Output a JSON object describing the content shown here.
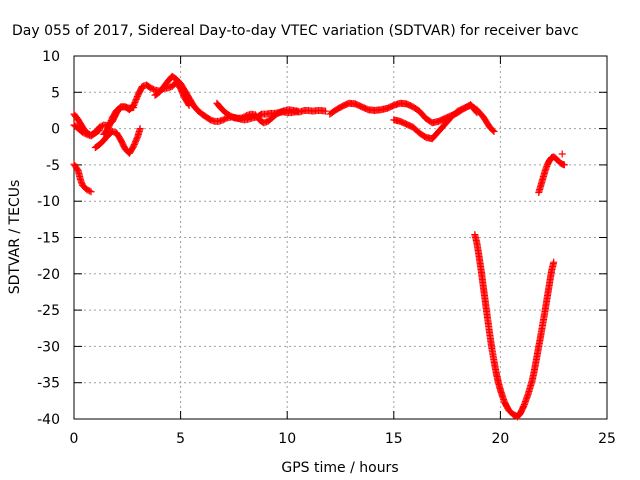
{
  "chart_data": {
    "type": "scatter",
    "title": "Day 055 of 2017, Sidereal Day-to-day VTEC variation (SDTVAR) for receiver bavc",
    "xlabel": "GPS time / hours",
    "ylabel": "SDTVAR / TECUs",
    "xlim": [
      0,
      25
    ],
    "ylim": [
      -40,
      10
    ],
    "xticks": [
      0,
      5,
      10,
      15,
      20,
      25
    ],
    "yticks": [
      -40,
      -35,
      -30,
      -25,
      -20,
      -15,
      -10,
      -5,
      0,
      5,
      10
    ],
    "grid": true,
    "marker": "+",
    "color": "#ff0000",
    "series": [
      {
        "points": [
          [
            0.0,
            2.0
          ],
          [
            0.2,
            1.2
          ],
          [
            0.4,
            0.2
          ],
          [
            0.6,
            -0.6
          ],
          [
            0.8,
            -0.9
          ],
          [
            1.0,
            -0.5
          ],
          [
            1.2,
            0.2
          ],
          [
            1.4,
            0.5
          ],
          [
            1.6,
            0.4
          ],
          [
            1.8,
            1.0
          ],
          [
            2.0,
            2.2
          ],
          [
            2.2,
            3.0
          ],
          [
            2.4,
            3.0
          ],
          [
            2.6,
            2.8
          ],
          [
            2.8,
            2.9
          ]
        ]
      },
      {
        "points": [
          [
            0.0,
            0.5
          ],
          [
            0.2,
            0.0
          ],
          [
            0.4,
            -0.5
          ],
          [
            0.6,
            -0.8
          ],
          [
            0.8,
            -1.0
          ],
          [
            1.0,
            -0.6
          ],
          [
            1.2,
            -0.2
          ]
        ]
      },
      {
        "points": [
          [
            1.0,
            -2.6
          ],
          [
            1.2,
            -2.2
          ],
          [
            1.4,
            -1.6
          ],
          [
            1.6,
            -0.9
          ],
          [
            1.8,
            -0.4
          ],
          [
            2.0,
            -0.6
          ],
          [
            2.2,
            -1.6
          ],
          [
            2.4,
            -2.8
          ],
          [
            2.6,
            -3.4
          ],
          [
            2.8,
            -2.4
          ],
          [
            3.0,
            -1.0
          ],
          [
            3.1,
            0.0
          ]
        ]
      },
      {
        "points": [
          [
            0.0,
            -4.9
          ],
          [
            0.2,
            -5.8
          ],
          [
            0.3,
            -7.0
          ],
          [
            0.4,
            -7.8
          ],
          [
            0.6,
            -8.4
          ],
          [
            0.8,
            -8.7
          ]
        ]
      },
      {
        "points": [
          [
            1.4,
            -0.8
          ],
          [
            1.6,
            0.0
          ],
          [
            1.8,
            1.5
          ],
          [
            2.0,
            2.5
          ],
          [
            2.2,
            3.0
          ],
          [
            2.4,
            3.0
          ],
          [
            2.6,
            2.6
          ],
          [
            2.8,
            3.2
          ],
          [
            3.0,
            4.6
          ],
          [
            3.2,
            5.8
          ],
          [
            3.4,
            6.0
          ],
          [
            3.6,
            5.6
          ],
          [
            3.8,
            5.3
          ],
          [
            4.0,
            5.2
          ],
          [
            4.2,
            5.5
          ],
          [
            4.4,
            5.6
          ],
          [
            4.6,
            5.8
          ],
          [
            4.8,
            6.4
          ],
          [
            5.0,
            5.5
          ],
          [
            5.2,
            4.2
          ],
          [
            5.4,
            3.2
          ]
        ]
      },
      {
        "points": [
          [
            3.8,
            4.6
          ],
          [
            4.0,
            5.0
          ],
          [
            4.2,
            5.7
          ],
          [
            4.4,
            6.5
          ],
          [
            4.6,
            7.2
          ],
          [
            4.8,
            6.8
          ],
          [
            5.0,
            6.2
          ],
          [
            5.2,
            5.2
          ],
          [
            5.4,
            4.2
          ],
          [
            5.6,
            3.2
          ],
          [
            5.8,
            2.5
          ],
          [
            6.0,
            2.0
          ],
          [
            6.2,
            1.6
          ],
          [
            6.4,
            1.2
          ],
          [
            6.6,
            1.0
          ],
          [
            6.8,
            1.0
          ],
          [
            7.0,
            1.2
          ],
          [
            7.2,
            1.5
          ],
          [
            7.4,
            1.6
          ],
          [
            7.6,
            1.5
          ],
          [
            7.8,
            1.3
          ],
          [
            8.0,
            1.2
          ],
          [
            8.2,
            1.3
          ],
          [
            8.4,
            1.5
          ],
          [
            8.6,
            1.6
          ],
          [
            8.8,
            2.0
          ],
          [
            9.0,
            2.0
          ],
          [
            9.2,
            2.1
          ],
          [
            9.4,
            2.1
          ],
          [
            9.6,
            2.2
          ],
          [
            9.8,
            2.3
          ],
          [
            10.0,
            2.2
          ],
          [
            10.2,
            2.2
          ],
          [
            10.4,
            2.3
          ],
          [
            10.6,
            2.3
          ],
          [
            10.8,
            2.5
          ],
          [
            11.0,
            2.5
          ],
          [
            11.2,
            2.4
          ],
          [
            11.4,
            2.5
          ],
          [
            11.6,
            2.5
          ],
          [
            11.8,
            2.4
          ]
        ]
      },
      {
        "points": [
          [
            6.7,
            3.5
          ],
          [
            6.9,
            2.8
          ],
          [
            7.1,
            2.2
          ],
          [
            7.3,
            1.8
          ],
          [
            7.5,
            1.5
          ],
          [
            7.7,
            1.4
          ],
          [
            7.9,
            1.5
          ],
          [
            8.1,
            1.8
          ],
          [
            8.3,
            2.0
          ],
          [
            8.5,
            1.9
          ],
          [
            8.7,
            1.2
          ],
          [
            8.9,
            0.8
          ],
          [
            9.1,
            1.0
          ],
          [
            9.3,
            1.5
          ],
          [
            9.5,
            2.0
          ],
          [
            9.7,
            2.3
          ],
          [
            9.9,
            2.5
          ],
          [
            10.1,
            2.6
          ],
          [
            10.3,
            2.5
          ],
          [
            10.5,
            2.4
          ]
        ]
      },
      {
        "points": [
          [
            12.0,
            2.0
          ],
          [
            12.3,
            2.6
          ],
          [
            12.6,
            3.1
          ],
          [
            12.9,
            3.5
          ],
          [
            13.2,
            3.4
          ],
          [
            13.5,
            3.0
          ],
          [
            13.8,
            2.6
          ],
          [
            14.1,
            2.5
          ],
          [
            14.4,
            2.6
          ],
          [
            14.7,
            2.8
          ],
          [
            15.0,
            3.2
          ],
          [
            15.3,
            3.5
          ],
          [
            15.6,
            3.4
          ],
          [
            15.9,
            3.0
          ],
          [
            16.2,
            2.4
          ],
          [
            16.5,
            1.4
          ],
          [
            16.8,
            0.8
          ],
          [
            17.1,
            1.0
          ],
          [
            17.4,
            1.4
          ],
          [
            17.7,
            1.8
          ],
          [
            18.0,
            2.2
          ],
          [
            18.3,
            2.8
          ],
          [
            18.6,
            3.2
          ],
          [
            18.9,
            2.6
          ],
          [
            19.2,
            1.6
          ],
          [
            19.5,
            0.2
          ],
          [
            19.7,
            -0.4
          ]
        ]
      },
      {
        "points": [
          [
            15.0,
            1.2
          ],
          [
            15.3,
            1.0
          ],
          [
            15.6,
            0.6
          ],
          [
            15.9,
            0.2
          ],
          [
            16.2,
            -0.6
          ],
          [
            16.5,
            -1.2
          ],
          [
            16.8,
            -1.4
          ],
          [
            17.1,
            -0.4
          ],
          [
            17.4,
            0.6
          ],
          [
            17.7,
            1.6
          ],
          [
            18.0,
            2.4
          ],
          [
            18.3,
            2.8
          ],
          [
            18.6,
            3.3
          ],
          [
            18.9,
            2.2
          ]
        ]
      },
      {
        "points": [
          [
            18.8,
            -14.6
          ],
          [
            18.9,
            -15.8
          ],
          [
            19.0,
            -17.6
          ],
          [
            19.1,
            -19.6
          ],
          [
            19.2,
            -21.8
          ],
          [
            19.3,
            -24.0
          ],
          [
            19.4,
            -26.2
          ],
          [
            19.5,
            -28.3
          ],
          [
            19.6,
            -30.3
          ],
          [
            19.7,
            -32.0
          ],
          [
            19.8,
            -33.6
          ],
          [
            19.9,
            -34.9
          ],
          [
            20.0,
            -36.0
          ],
          [
            20.1,
            -36.9
          ],
          [
            20.2,
            -37.7
          ],
          [
            20.3,
            -38.3
          ],
          [
            20.4,
            -38.8
          ],
          [
            20.5,
            -39.1
          ],
          [
            20.6,
            -39.4
          ],
          [
            20.7,
            -39.5
          ],
          [
            20.8,
            -39.7
          ],
          [
            20.9,
            -39.4
          ],
          [
            21.0,
            -38.8
          ],
          [
            21.1,
            -38.2
          ],
          [
            21.2,
            -37.4
          ],
          [
            21.3,
            -36.6
          ],
          [
            21.4,
            -35.6
          ],
          [
            21.5,
            -34.6
          ],
          [
            21.6,
            -33.2
          ],
          [
            21.7,
            -31.6
          ],
          [
            21.8,
            -30.0
          ],
          [
            21.9,
            -28.4
          ],
          [
            22.0,
            -26.7
          ],
          [
            22.1,
            -25.0
          ],
          [
            22.2,
            -23.2
          ],
          [
            22.3,
            -21.4
          ],
          [
            22.4,
            -19.6
          ],
          [
            22.5,
            -18.4
          ]
        ]
      },
      {
        "points": [
          [
            21.8,
            -8.8
          ],
          [
            21.9,
            -7.8
          ],
          [
            22.0,
            -6.8
          ],
          [
            22.1,
            -5.8
          ],
          [
            22.2,
            -5.0
          ],
          [
            22.3,
            -4.4
          ],
          [
            22.4,
            -4.0
          ],
          [
            22.5,
            -3.9
          ],
          [
            22.6,
            -4.1
          ],
          [
            22.7,
            -4.4
          ],
          [
            22.8,
            -4.7
          ],
          [
            22.9,
            -4.9
          ],
          [
            23.0,
            -5.0
          ]
        ]
      },
      {
        "points": [
          [
            22.9,
            -3.5
          ]
        ]
      }
    ]
  }
}
